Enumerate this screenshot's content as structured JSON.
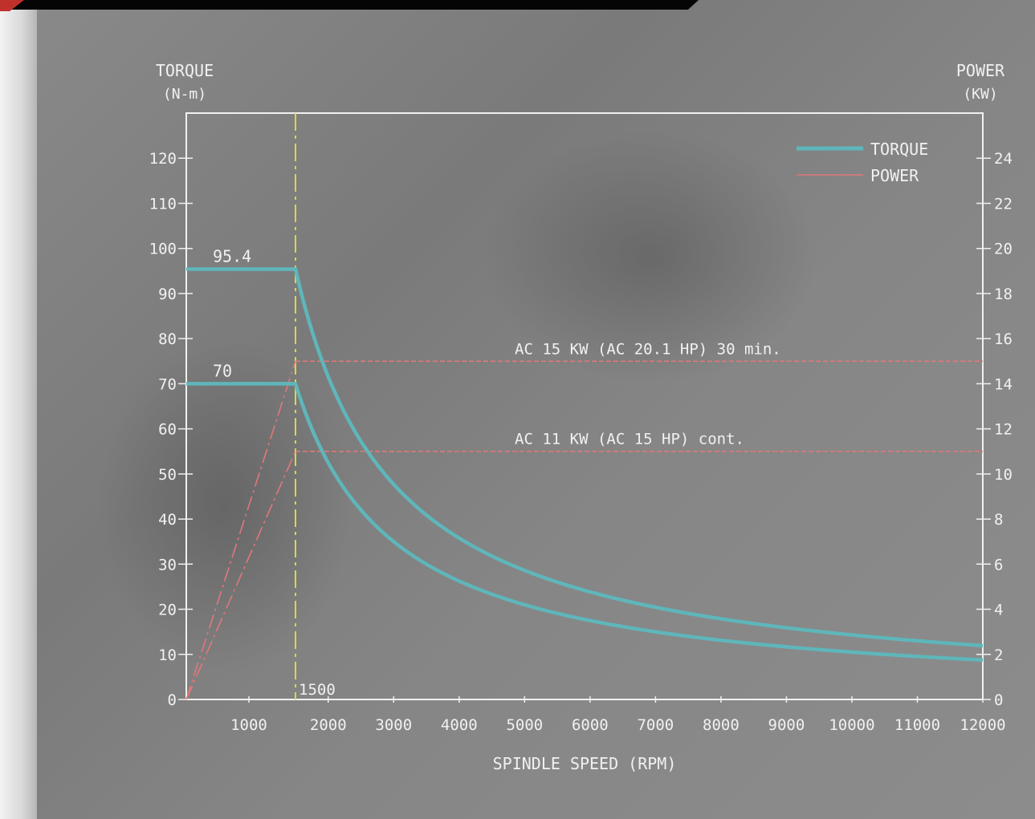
{
  "chart_data": {
    "type": "line",
    "xlabel": "SPINDLE SPEED (RPM)",
    "ylabel_left": {
      "line1": "TORQUE",
      "line2": "(N-m)"
    },
    "ylabel_right": {
      "line1": "POWER",
      "line2": "(KW)"
    },
    "xlim": [
      0,
      12000
    ],
    "ylim_left": [
      0,
      130
    ],
    "ylim_right": [
      0,
      26
    ],
    "x_ticks": [
      1000,
      2000,
      3000,
      4000,
      5000,
      6000,
      7000,
      8000,
      9000,
      10000,
      11000,
      12000
    ],
    "y_left_ticks": [
      0,
      10,
      20,
      30,
      40,
      50,
      60,
      70,
      80,
      90,
      100,
      110,
      120
    ],
    "y_right_ticks": [
      0,
      2,
      4,
      6,
      8,
      10,
      12,
      14,
      16,
      18,
      20,
      22,
      24
    ],
    "grid": false,
    "legend_position": "top-right",
    "legend": [
      {
        "name": "TORQUE",
        "color": "#5fb6ba"
      },
      {
        "name": "POWER",
        "color": "#e0787a"
      }
    ],
    "base_speed": {
      "x": 1500,
      "label": "1500",
      "color": "#d8d84a"
    },
    "series": [
      {
        "name": "TORQUE",
        "axis": "left",
        "label": "95.4",
        "x": [
          0,
          1500,
          2000,
          3000,
          4000,
          5000,
          6000,
          7000,
          8000,
          9000,
          10000,
          11000,
          12000
        ],
        "values": [
          95.4,
          95.4,
          71.6,
          47.7,
          35.8,
          28.6,
          23.9,
          20.4,
          17.9,
          15.9,
          14.3,
          13.0,
          11.9
        ]
      },
      {
        "name": "TORQUE",
        "axis": "left",
        "label": "70",
        "x": [
          0,
          1500,
          2000,
          3000,
          4000,
          5000,
          6000,
          7000,
          8000,
          9000,
          10000,
          11000,
          12000
        ],
        "values": [
          70,
          70,
          52.5,
          35.0,
          26.3,
          21.0,
          17.5,
          15.0,
          13.1,
          11.7,
          10.5,
          9.5,
          8.8
        ]
      },
      {
        "name": "POWER",
        "axis": "right",
        "label": "AC 15 KW (AC 20.1 HP) 30 min.",
        "x": [
          0,
          1500,
          12000
        ],
        "values": [
          0,
          15,
          15
        ]
      },
      {
        "name": "POWER",
        "axis": "right",
        "label": "AC 11 KW (AC 15 HP) cont.",
        "x": [
          0,
          1500,
          12000
        ],
        "values": [
          0,
          11,
          11
        ]
      }
    ]
  }
}
